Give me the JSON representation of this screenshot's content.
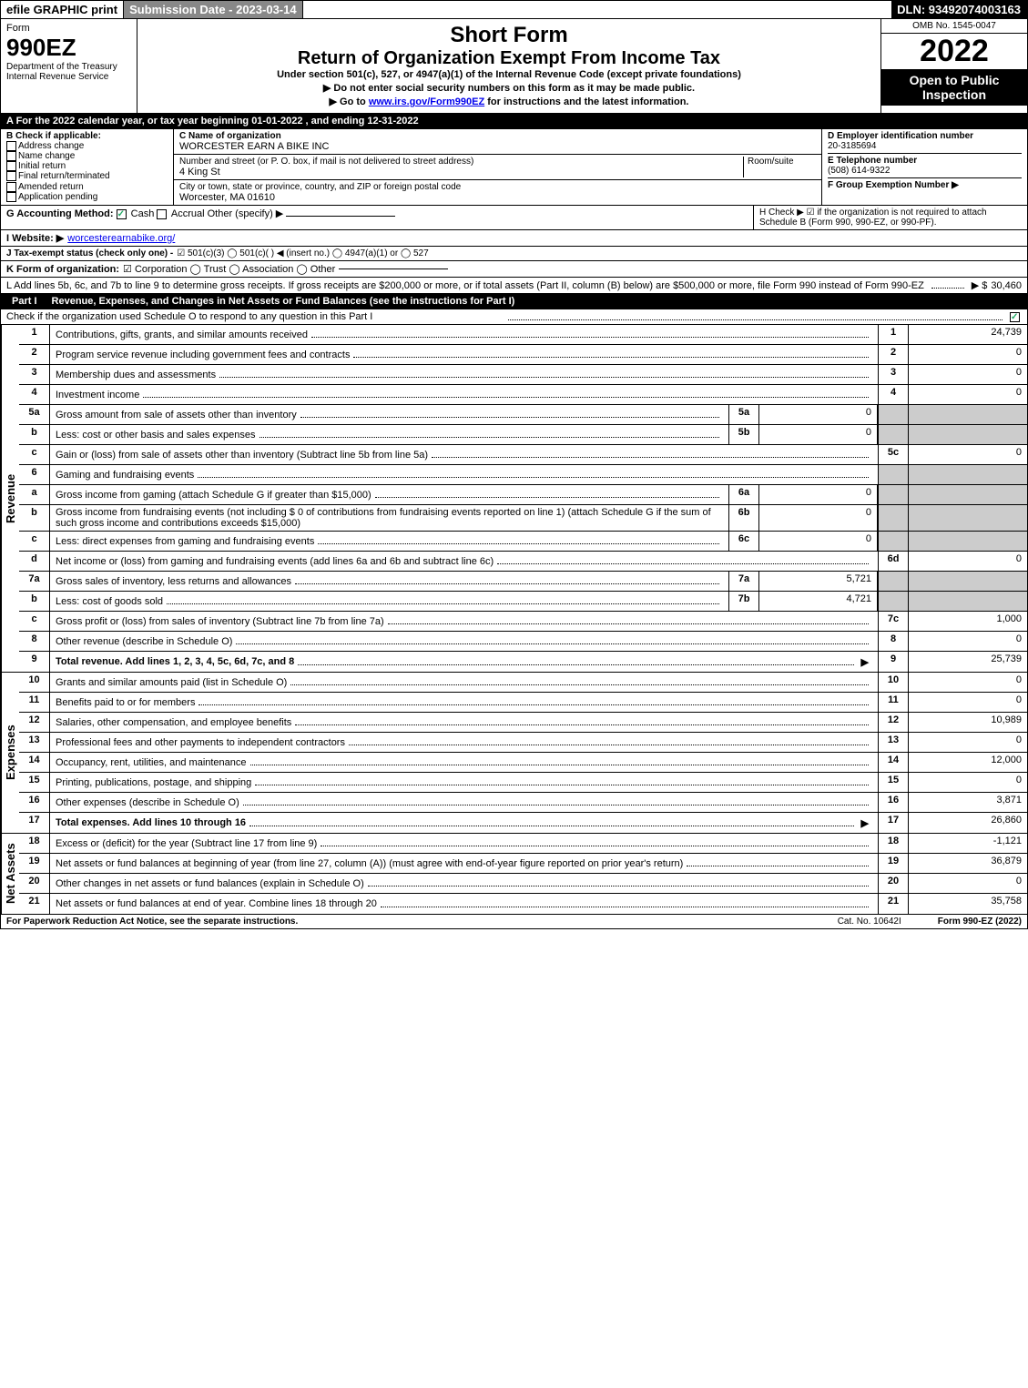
{
  "topbar": {
    "efile": "efile GRAPHIC print",
    "submission": "Submission Date - 2023-03-14",
    "dln": "DLN: 93492074003163"
  },
  "header": {
    "form_word": "Form",
    "form_num": "990EZ",
    "dept1": "Department of the Treasury",
    "dept2": "Internal Revenue Service",
    "short_form": "Short Form",
    "return_title": "Return of Organization Exempt From Income Tax",
    "subtitle": "Under section 501(c), 527, or 4947(a)(1) of the Internal Revenue Code (except private foundations)",
    "instr1": "▶ Do not enter social security numbers on this form as it may be made public.",
    "instr2_pre": "▶ Go to ",
    "instr2_link": "www.irs.gov/Form990EZ",
    "instr2_post": " for instructions and the latest information.",
    "omb": "OMB No. 1545-0047",
    "year": "2022",
    "open_pub": "Open to Public Inspection"
  },
  "A": "A  For the 2022 calendar year, or tax year beginning 01-01-2022 , and ending 12-31-2022",
  "B": {
    "label": "B  Check if applicable:",
    "items": [
      "Address change",
      "Name change",
      "Initial return",
      "Final return/terminated",
      "Amended return",
      "Application pending"
    ]
  },
  "C": {
    "name_label": "C Name of organization",
    "name": "WORCESTER EARN A BIKE INC",
    "street_label": "Number and street (or P. O. box, if mail is not delivered to street address)",
    "room_label": "Room/suite",
    "street": "4 King St",
    "city_label": "City or town, state or province, country, and ZIP or foreign postal code",
    "city": "Worcester, MA  01610"
  },
  "D": {
    "label": "D Employer identification number",
    "val": "20-3185694"
  },
  "E": {
    "label": "E Telephone number",
    "val": "(508) 614-9322"
  },
  "F": {
    "label": "F Group Exemption Number  ▶"
  },
  "G": {
    "label": "G Accounting Method:",
    "cash": "Cash",
    "accrual": "Accrual",
    "other": "Other (specify) ▶"
  },
  "H": {
    "text": "H  Check ▶ ☑ if the organization is not required to attach Schedule B (Form 990, 990-EZ, or 990-PF)."
  },
  "I": {
    "label": "I Website: ▶",
    "val": "worcesterearnabike.org/"
  },
  "J": {
    "label": "J Tax-exempt status (check only one) -",
    "opts": "☑ 501(c)(3)  ◯ 501(c)( ) ◀ (insert no.)  ◯ 4947(a)(1) or  ◯ 527"
  },
  "K": {
    "label": "K Form of organization:",
    "opts": "☑ Corporation  ◯ Trust  ◯ Association  ◯ Other"
  },
  "L": {
    "text": "L Add lines 5b, 6c, and 7b to line 9 to determine gross receipts. If gross receipts are $200,000 or more, or if total assets (Part II, column (B) below) are $500,000 or more, file Form 990 instead of Form 990-EZ",
    "amount_label": "▶ $",
    "amount": "30,460"
  },
  "part1": {
    "label": "Part I",
    "title": "Revenue, Expenses, and Changes in Net Assets or Fund Balances (see the instructions for Part I)",
    "check_o": "Check if the organization used Schedule O to respond to any question in this Part I"
  },
  "sections": {
    "revenue": "Revenue",
    "expenses": "Expenses",
    "netassets": "Net Assets"
  },
  "lines": {
    "l1": {
      "n": "1",
      "d": "Contributions, gifts, grants, and similar amounts received",
      "ln": "1",
      "amt": "24,739"
    },
    "l2": {
      "n": "2",
      "d": "Program service revenue including government fees and contracts",
      "ln": "2",
      "amt": "0"
    },
    "l3": {
      "n": "3",
      "d": "Membership dues and assessments",
      "ln": "3",
      "amt": "0"
    },
    "l4": {
      "n": "4",
      "d": "Investment income",
      "ln": "4",
      "amt": "0"
    },
    "l5a": {
      "n": "5a",
      "d": "Gross amount from sale of assets other than inventory",
      "sb": "5a",
      "sv": "0"
    },
    "l5b": {
      "n": "b",
      "d": "Less: cost or other basis and sales expenses",
      "sb": "5b",
      "sv": "0"
    },
    "l5c": {
      "n": "c",
      "d": "Gain or (loss) from sale of assets other than inventory (Subtract line 5b from line 5a)",
      "ln": "5c",
      "amt": "0"
    },
    "l6": {
      "n": "6",
      "d": "Gaming and fundraising events"
    },
    "l6a": {
      "n": "a",
      "d": "Gross income from gaming (attach Schedule G if greater than $15,000)",
      "sb": "6a",
      "sv": "0"
    },
    "l6b": {
      "n": "b",
      "d": "Gross income from fundraising events (not including $  0       of contributions from fundraising events reported on line 1) (attach Schedule G if the sum of such gross income and contributions exceeds $15,000)",
      "sb": "6b",
      "sv": "0"
    },
    "l6c": {
      "n": "c",
      "d": "Less: direct expenses from gaming and fundraising events",
      "sb": "6c",
      "sv": "0"
    },
    "l6d": {
      "n": "d",
      "d": "Net income or (loss) from gaming and fundraising events (add lines 6a and 6b and subtract line 6c)",
      "ln": "6d",
      "amt": "0"
    },
    "l7a": {
      "n": "7a",
      "d": "Gross sales of inventory, less returns and allowances",
      "sb": "7a",
      "sv": "5,721"
    },
    "l7b": {
      "n": "b",
      "d": "Less: cost of goods sold",
      "sb": "7b",
      "sv": "4,721"
    },
    "l7c": {
      "n": "c",
      "d": "Gross profit or (loss) from sales of inventory (Subtract line 7b from line 7a)",
      "ln": "7c",
      "amt": "1,000"
    },
    "l8": {
      "n": "8",
      "d": "Other revenue (describe in Schedule O)",
      "ln": "8",
      "amt": "0"
    },
    "l9": {
      "n": "9",
      "d": "Total revenue. Add lines 1, 2, 3, 4, 5c, 6d, 7c, and 8",
      "ln": "9",
      "amt": "25,739",
      "bold": true,
      "arrow": true
    },
    "l10": {
      "n": "10",
      "d": "Grants and similar amounts paid (list in Schedule O)",
      "ln": "10",
      "amt": "0"
    },
    "l11": {
      "n": "11",
      "d": "Benefits paid to or for members",
      "ln": "11",
      "amt": "0"
    },
    "l12": {
      "n": "12",
      "d": "Salaries, other compensation, and employee benefits",
      "ln": "12",
      "amt": "10,989"
    },
    "l13": {
      "n": "13",
      "d": "Professional fees and other payments to independent contractors",
      "ln": "13",
      "amt": "0"
    },
    "l14": {
      "n": "14",
      "d": "Occupancy, rent, utilities, and maintenance",
      "ln": "14",
      "amt": "12,000"
    },
    "l15": {
      "n": "15",
      "d": "Printing, publications, postage, and shipping",
      "ln": "15",
      "amt": "0"
    },
    "l16": {
      "n": "16",
      "d": "Other expenses (describe in Schedule O)",
      "ln": "16",
      "amt": "3,871"
    },
    "l17": {
      "n": "17",
      "d": "Total expenses. Add lines 10 through 16",
      "ln": "17",
      "amt": "26,860",
      "bold": true,
      "arrow": true
    },
    "l18": {
      "n": "18",
      "d": "Excess or (deficit) for the year (Subtract line 17 from line 9)",
      "ln": "18",
      "amt": "-1,121"
    },
    "l19": {
      "n": "19",
      "d": "Net assets or fund balances at beginning of year (from line 27, column (A)) (must agree with end-of-year figure reported on prior year's return)",
      "ln": "19",
      "amt": "36,879"
    },
    "l20": {
      "n": "20",
      "d": "Other changes in net assets or fund balances (explain in Schedule O)",
      "ln": "20",
      "amt": "0"
    },
    "l21": {
      "n": "21",
      "d": "Net assets or fund balances at end of year. Combine lines 18 through 20",
      "ln": "21",
      "amt": "35,758"
    }
  },
  "footer": {
    "left": "For Paperwork Reduction Act Notice, see the separate instructions.",
    "mid": "Cat. No. 10642I",
    "right": "Form 990-EZ (2022)"
  },
  "colors": {
    "black": "#000000",
    "white": "#ffffff",
    "shade": "#cccccc",
    "link": "#0000ee",
    "check": "#22aa66"
  }
}
